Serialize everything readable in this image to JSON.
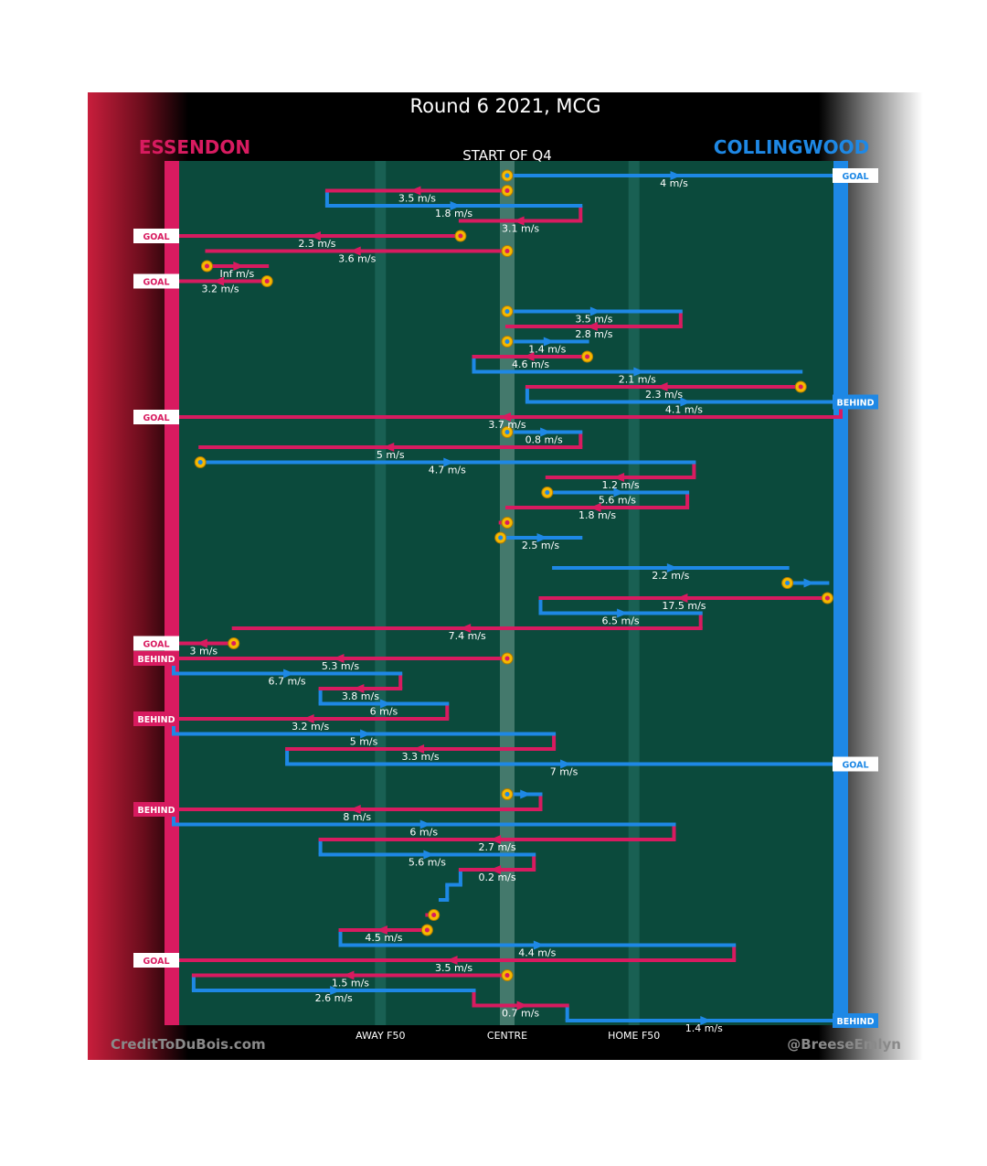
{
  "chart_data": {
    "type": "flow",
    "title": "Round 6 2021, MCG",
    "subtitle": "START OF Q4",
    "teams": {
      "away": {
        "name": "ESSENDON",
        "color": "#d81b60"
      },
      "home": {
        "name": "COLLINGWOOD",
        "color": "#1e88e5"
      }
    },
    "colors": {
      "field": "#0b4a3c",
      "midfield_band": "#6a9a8c",
      "f50_line": "#1f6a5c",
      "possession_marker": "#f5b800"
    },
    "x_axis": {
      "description": "field position, 0 = Essendon goal line, 100 = Collingwood goal line",
      "range": [
        0,
        100
      ],
      "ticks": [
        {
          "label": "AWAY F50",
          "x": 31
        },
        {
          "label": "CENTRE",
          "x": 50
        },
        {
          "label": "HOME F50",
          "x": 69
        }
      ]
    },
    "credits": {
      "left": "CreditToDuBois.com",
      "right": "@BreeseEmlyn"
    },
    "chains": [
      {
        "team": "home",
        "row": 0,
        "from": 50,
        "to": 100,
        "label": "4 m/s",
        "start": true,
        "outcome": "GOAL"
      },
      {
        "team": "away",
        "row": 1,
        "from": 50,
        "to": 23,
        "label": "3.5 m/s",
        "start": true
      },
      {
        "team": "home",
        "row": 2,
        "from": 23,
        "to": 61,
        "label": "1.8 m/s"
      },
      {
        "team": "away",
        "row": 3,
        "from": 61,
        "to": 43,
        "label": "3.1 m/s"
      },
      {
        "team": "away",
        "row": 4,
        "from": 43,
        "to": 0,
        "label": "2.3 m/s",
        "start": true,
        "outcome": "GOAL"
      },
      {
        "team": "away",
        "row": 5,
        "from": 50,
        "to": 5,
        "label": "3.6 m/s",
        "start": true
      },
      {
        "team": "away",
        "row": 6,
        "from": 5,
        "to": 14,
        "label": "Inf m/s",
        "start": true
      },
      {
        "team": "away",
        "row": 7,
        "from": 14,
        "to": 0,
        "label": "3.2 m/s",
        "start": true,
        "outcome": "GOAL"
      },
      {
        "team": "home",
        "row": 9,
        "from": 50,
        "to": 76,
        "label": "3.5 m/s",
        "start": true
      },
      {
        "team": "away",
        "row": 10,
        "from": 76,
        "to": 50,
        "label": "2.8 m/s"
      },
      {
        "team": "home",
        "row": 11,
        "from": 50,
        "to": 62,
        "label": "1.4 m/s",
        "start": true
      },
      {
        "team": "away",
        "row": 12,
        "from": 62,
        "to": 45,
        "label": "4.6 m/s",
        "start": true
      },
      {
        "team": "home",
        "row": 13,
        "from": 45,
        "to": 94,
        "label": "2.1 m/s"
      },
      {
        "team": "away",
        "row": 14,
        "from": 94,
        "to": 53,
        "label": "2.3 m/s",
        "start": true
      },
      {
        "team": "home",
        "row": 15,
        "from": 53,
        "to": 100,
        "label": "4.1 m/s",
        "outcome": "BEHIND"
      },
      {
        "team": "away",
        "row": 16,
        "from": 100,
        "to": 0,
        "label": "3.7 m/s",
        "outcome": "GOAL"
      },
      {
        "team": "home",
        "row": 17,
        "from": 50,
        "to": 61,
        "label": "0.8 m/s",
        "start": true
      },
      {
        "team": "away",
        "row": 18,
        "from": 61,
        "to": 4,
        "label": "5 m/s"
      },
      {
        "team": "home",
        "row": 19,
        "from": 4,
        "to": 78,
        "label": "4.7 m/s",
        "start": true
      },
      {
        "team": "away",
        "row": 20,
        "from": 78,
        "to": 56,
        "label": "1.2 m/s"
      },
      {
        "team": "home",
        "row": 21,
        "from": 56,
        "to": 77,
        "label": "5.6 m/s",
        "start": true
      },
      {
        "team": "away",
        "row": 22,
        "from": 77,
        "to": 50,
        "label": "1.8 m/s"
      },
      {
        "team": "away",
        "row": 23,
        "from": 50,
        "to": 49,
        "label": "",
        "start": true
      },
      {
        "team": "home",
        "row": 24,
        "from": 49,
        "to": 61,
        "label": "2.5 m/s",
        "start": true
      },
      {
        "team": "home",
        "row": 26,
        "from": 57,
        "to": 92,
        "label": "2.2 m/s"
      },
      {
        "team": "home",
        "row": 27,
        "from": 92,
        "to": 98,
        "label": "",
        "start": true
      },
      {
        "team": "away",
        "row": 28,
        "from": 98,
        "to": 55,
        "label": "17.5 m/s",
        "start": true
      },
      {
        "team": "home",
        "row": 29,
        "from": 55,
        "to": 79,
        "label": "6.5 m/s"
      },
      {
        "team": "away",
        "row": 30,
        "from": 79,
        "to": 9,
        "label": "7.4 m/s"
      },
      {
        "team": "away",
        "row": 31,
        "from": 9,
        "to": 0,
        "label": "3 m/s",
        "start": true,
        "outcome": "GOAL"
      },
      {
        "team": "away",
        "row": 32,
        "from": 50,
        "to": 0,
        "label": "5.3 m/s",
        "start": true,
        "outcome": "BEHIND"
      },
      {
        "team": "home",
        "row": 33,
        "from": 0,
        "to": 34,
        "label": "6.7 m/s"
      },
      {
        "team": "away",
        "row": 34,
        "from": 34,
        "to": 22,
        "label": "3.8 m/s"
      },
      {
        "team": "home",
        "row": 35,
        "from": 22,
        "to": 41,
        "label": "6 m/s"
      },
      {
        "team": "away",
        "row": 36,
        "from": 41,
        "to": 0,
        "label": "3.2 m/s",
        "outcome": "BEHIND"
      },
      {
        "team": "home",
        "row": 37,
        "from": 0,
        "to": 57,
        "label": "5 m/s"
      },
      {
        "team": "away",
        "row": 38,
        "from": 57,
        "to": 17,
        "label": "3.3 m/s"
      },
      {
        "team": "home",
        "row": 39,
        "from": 17,
        "to": 100,
        "label": "7 m/s",
        "outcome": "GOAL"
      },
      {
        "team": "home",
        "row": 41,
        "from": 50,
        "to": 55,
        "label": "",
        "start": true
      },
      {
        "team": "away",
        "row": 42,
        "from": 55,
        "to": 0,
        "label": "8 m/s",
        "outcome": "BEHIND"
      },
      {
        "team": "home",
        "row": 43,
        "from": 0,
        "to": 75,
        "label": "6 m/s"
      },
      {
        "team": "away",
        "row": 44,
        "from": 75,
        "to": 22,
        "label": "2.7 m/s"
      },
      {
        "team": "home",
        "row": 45,
        "from": 22,
        "to": 54,
        "label": "5.6 m/s"
      },
      {
        "team": "away",
        "row": 46,
        "from": 54,
        "to": 43,
        "label": "0.2 m/s"
      },
      {
        "team": "home",
        "row": 47,
        "from": 43,
        "to": 41,
        "label": ""
      },
      {
        "team": "home",
        "row": 48,
        "from": 41,
        "to": 40,
        "label": ""
      },
      {
        "team": "away",
        "row": 49,
        "from": 39,
        "to": 38,
        "label": "",
        "start": true
      },
      {
        "team": "away",
        "row": 50,
        "from": 38,
        "to": 25,
        "label": "4.5 m/s",
        "start": true
      },
      {
        "team": "home",
        "row": 51,
        "from": 25,
        "to": 84,
        "label": "4.4 m/s"
      },
      {
        "team": "away",
        "row": 52,
        "from": 84,
        "to": 0,
        "label": "3.5 m/s",
        "outcome": "GOAL"
      },
      {
        "team": "away",
        "row": 53,
        "from": 50,
        "to": 3,
        "label": "1.5 m/s",
        "start": true
      },
      {
        "team": "home",
        "row": 54,
        "from": 3,
        "to": 45,
        "label": "2.6 m/s"
      },
      {
        "team": "away",
        "row": 55,
        "from": 45,
        "to": 59,
        "label": "0.7 m/s"
      },
      {
        "team": "home",
        "row": 56,
        "from": 59,
        "to": 100,
        "label": "1.4 m/s",
        "outcome": "BEHIND"
      }
    ]
  }
}
